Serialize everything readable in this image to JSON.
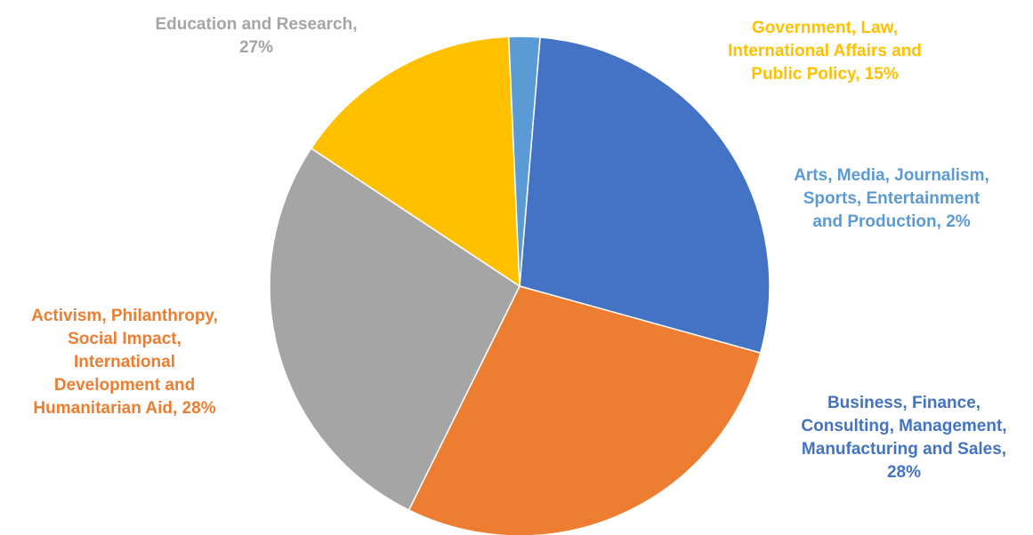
{
  "chart_data": {
    "type": "pie",
    "title": "",
    "start_angle_deg": 85.3,
    "direction": "clockwise",
    "slices": [
      {
        "key": "business",
        "value": 28,
        "percent_label": "28%",
        "color": "#4472C4",
        "label_lines": [
          "Business, Finance,",
          "Consulting, Management,",
          "Manufacturing and Sales,",
          "28%"
        ]
      },
      {
        "key": "activism",
        "value": 28,
        "percent_label": "28%",
        "color": "#ED7D31",
        "label_lines": [
          "Activism, Philanthropy,",
          "Social Impact,",
          "International",
          "Development and",
          "Humanitarian Aid, 28%"
        ]
      },
      {
        "key": "edu",
        "value": 27,
        "percent_label": "27%",
        "color": "#A5A5A5",
        "label_lines": [
          "Education and Research,",
          "27%"
        ]
      },
      {
        "key": "gov",
        "value": 15,
        "percent_label": "15%",
        "color": "#FFC000",
        "label_lines": [
          "Government, Law,",
          "International Affairs and",
          "Public Policy, 15%"
        ]
      },
      {
        "key": "arts",
        "value": 2,
        "percent_label": "2%",
        "color": "#5B9BD5",
        "label_lines": [
          "Arts, Media, Journalism,",
          "Sports, Entertainment",
          "and Production, 2%"
        ]
      }
    ]
  }
}
